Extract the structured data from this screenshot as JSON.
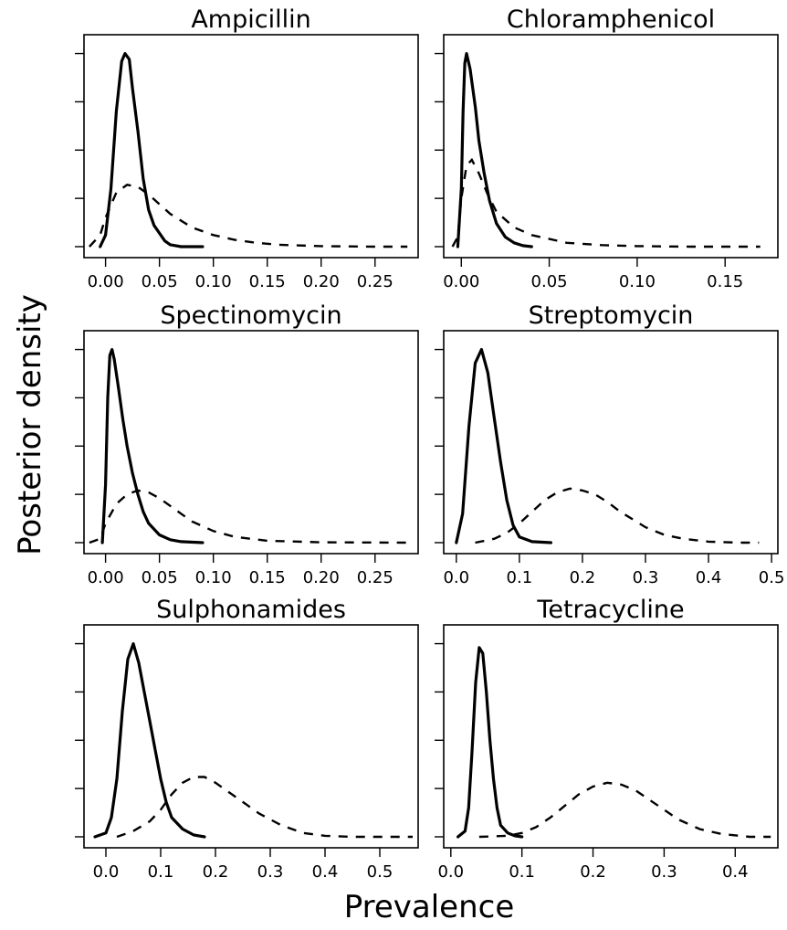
{
  "figure": {
    "xlabel": "Prevalence",
    "ylabel": "Posterior density"
  },
  "chart_data": [
    {
      "type": "line",
      "title": "Ampicillin",
      "xticks": [
        "0.00",
        "0.05",
        "0.10",
        "0.15",
        "0.20",
        "0.25"
      ],
      "xlim": [
        -0.02,
        0.29
      ],
      "ylim": [
        0,
        1.05
      ],
      "series": [
        {
          "style": "solid",
          "x": [
            -0.005,
            0.0,
            0.005,
            0.01,
            0.015,
            0.018,
            0.022,
            0.025,
            0.03,
            0.035,
            0.04,
            0.045,
            0.05,
            0.055,
            0.06,
            0.065,
            0.07,
            0.08,
            0.09
          ],
          "y": [
            0.0,
            0.06,
            0.3,
            0.7,
            0.96,
            1.0,
            0.97,
            0.82,
            0.6,
            0.35,
            0.19,
            0.11,
            0.07,
            0.03,
            0.01,
            0.005,
            0.0,
            0.0,
            0.0
          ]
        },
        {
          "style": "dashed",
          "x": [
            -0.015,
            -0.005,
            0.0,
            0.01,
            0.02,
            0.03,
            0.04,
            0.05,
            0.06,
            0.08,
            0.1,
            0.12,
            0.14,
            0.16,
            0.2,
            0.25,
            0.28
          ],
          "y": [
            0.0,
            0.06,
            0.15,
            0.28,
            0.32,
            0.31,
            0.27,
            0.22,
            0.17,
            0.1,
            0.06,
            0.035,
            0.02,
            0.01,
            0.003,
            0.0,
            0.0
          ]
        }
      ]
    },
    {
      "type": "line",
      "title": "Chloramphenicol",
      "xticks": [
        "0.00",
        "0.05",
        "0.10",
        "0.15"
      ],
      "xlim": [
        -0.01,
        0.18
      ],
      "ylim": [
        0,
        1.05
      ],
      "series": [
        {
          "style": "solid",
          "x": [
            -0.002,
            0.0,
            0.001,
            0.002,
            0.003,
            0.005,
            0.008,
            0.01,
            0.013,
            0.016,
            0.02,
            0.025,
            0.03,
            0.035,
            0.04
          ],
          "y": [
            0.0,
            0.3,
            0.7,
            0.95,
            1.0,
            0.92,
            0.72,
            0.55,
            0.38,
            0.24,
            0.12,
            0.05,
            0.02,
            0.005,
            0.0
          ]
        },
        {
          "style": "dashed",
          "x": [
            -0.005,
            -0.002,
            0.0,
            0.003,
            0.006,
            0.01,
            0.015,
            0.02,
            0.03,
            0.04,
            0.06,
            0.08,
            0.1,
            0.13,
            0.17
          ],
          "y": [
            0.0,
            0.05,
            0.25,
            0.42,
            0.45,
            0.38,
            0.27,
            0.18,
            0.1,
            0.06,
            0.02,
            0.008,
            0.003,
            0.0,
            0.0
          ]
        }
      ]
    },
    {
      "type": "line",
      "title": "Spectinomycin",
      "xticks": [
        "0.00",
        "0.05",
        "0.10",
        "0.15",
        "0.20",
        "0.25"
      ],
      "xlim": [
        -0.02,
        0.29
      ],
      "ylim": [
        0,
        1.05
      ],
      "series": [
        {
          "style": "solid",
          "x": [
            -0.003,
            0.0,
            0.002,
            0.004,
            0.006,
            0.008,
            0.012,
            0.016,
            0.02,
            0.025,
            0.03,
            0.035,
            0.04,
            0.05,
            0.06,
            0.07,
            0.09
          ],
          "y": [
            0.0,
            0.3,
            0.75,
            0.97,
            1.0,
            0.95,
            0.8,
            0.64,
            0.5,
            0.36,
            0.25,
            0.16,
            0.1,
            0.04,
            0.015,
            0.005,
            0.0
          ]
        },
        {
          "style": "dashed",
          "x": [
            -0.015,
            -0.005,
            0.0,
            0.01,
            0.02,
            0.03,
            0.04,
            0.05,
            0.06,
            0.07,
            0.08,
            0.1,
            0.12,
            0.15,
            0.2,
            0.28
          ],
          "y": [
            0.0,
            0.02,
            0.1,
            0.2,
            0.25,
            0.27,
            0.26,
            0.23,
            0.19,
            0.15,
            0.11,
            0.06,
            0.03,
            0.01,
            0.002,
            0.0
          ]
        }
      ]
    },
    {
      "type": "line",
      "title": "Streptomycin",
      "xticks": [
        "0.0",
        "0.1",
        "0.2",
        "0.3",
        "0.4",
        "0.5"
      ],
      "xlim": [
        -0.02,
        0.51
      ],
      "ylim": [
        0,
        1.05
      ],
      "series": [
        {
          "style": "solid",
          "x": [
            0.0,
            0.01,
            0.02,
            0.03,
            0.04,
            0.05,
            0.06,
            0.07,
            0.08,
            0.09,
            0.1,
            0.12,
            0.15
          ],
          "y": [
            0.0,
            0.15,
            0.6,
            0.93,
            1.0,
            0.88,
            0.65,
            0.42,
            0.22,
            0.09,
            0.03,
            0.005,
            0.0
          ]
        },
        {
          "style": "dashed",
          "x": [
            0.03,
            0.06,
            0.08,
            0.1,
            0.12,
            0.14,
            0.16,
            0.18,
            0.2,
            0.22,
            0.24,
            0.26,
            0.28,
            0.3,
            0.33,
            0.36,
            0.4,
            0.45,
            0.48
          ],
          "y": [
            0.0,
            0.02,
            0.05,
            0.1,
            0.16,
            0.22,
            0.26,
            0.28,
            0.27,
            0.25,
            0.21,
            0.16,
            0.12,
            0.08,
            0.04,
            0.02,
            0.005,
            0.0,
            0.0
          ]
        }
      ]
    },
    {
      "type": "line",
      "title": "Sulphonamides",
      "xticks": [
        "0.0",
        "0.1",
        "0.2",
        "0.3",
        "0.4",
        "0.5"
      ],
      "xlim": [
        -0.04,
        0.57
      ],
      "ylim": [
        0,
        1.05
      ],
      "series": [
        {
          "style": "solid",
          "x": [
            -0.02,
            0.0,
            0.01,
            0.02,
            0.03,
            0.04,
            0.05,
            0.06,
            0.07,
            0.08,
            0.09,
            0.1,
            0.11,
            0.12,
            0.14,
            0.16,
            0.18
          ],
          "y": [
            0.0,
            0.02,
            0.1,
            0.3,
            0.65,
            0.92,
            1.0,
            0.9,
            0.75,
            0.6,
            0.45,
            0.3,
            0.18,
            0.1,
            0.04,
            0.01,
            0.0
          ]
        },
        {
          "style": "dashed",
          "x": [
            0.02,
            0.05,
            0.08,
            0.1,
            0.12,
            0.14,
            0.16,
            0.18,
            0.2,
            0.22,
            0.25,
            0.28,
            0.32,
            0.36,
            0.4,
            0.45,
            0.5,
            0.56
          ],
          "y": [
            0.0,
            0.03,
            0.08,
            0.14,
            0.22,
            0.28,
            0.31,
            0.31,
            0.28,
            0.24,
            0.18,
            0.12,
            0.06,
            0.02,
            0.005,
            0.0,
            0.0,
            0.0
          ]
        }
      ]
    },
    {
      "type": "line",
      "title": "Tetracycline",
      "xticks": [
        "0.0",
        "0.1",
        "0.2",
        "0.3",
        "0.4"
      ],
      "xlim": [
        -0.01,
        0.46
      ],
      "ylim": [
        0,
        1.05
      ],
      "series": [
        {
          "style": "solid",
          "x": [
            0.01,
            0.02,
            0.025,
            0.03,
            0.035,
            0.04,
            0.045,
            0.05,
            0.055,
            0.06,
            0.065,
            0.07,
            0.08,
            0.09,
            0.1
          ],
          "y": [
            0.0,
            0.03,
            0.15,
            0.45,
            0.8,
            0.98,
            0.95,
            0.75,
            0.5,
            0.3,
            0.15,
            0.06,
            0.02,
            0.005,
            0.0
          ]
        },
        {
          "style": "dashed",
          "x": [
            0.04,
            0.08,
            0.1,
            0.12,
            0.14,
            0.16,
            0.18,
            0.2,
            0.22,
            0.24,
            0.26,
            0.28,
            0.3,
            0.32,
            0.35,
            0.38,
            0.42,
            0.45
          ],
          "y": [
            0.0,
            0.005,
            0.02,
            0.05,
            0.1,
            0.16,
            0.22,
            0.26,
            0.28,
            0.27,
            0.24,
            0.19,
            0.14,
            0.09,
            0.04,
            0.015,
            0.0,
            0.0
          ]
        }
      ]
    }
  ]
}
